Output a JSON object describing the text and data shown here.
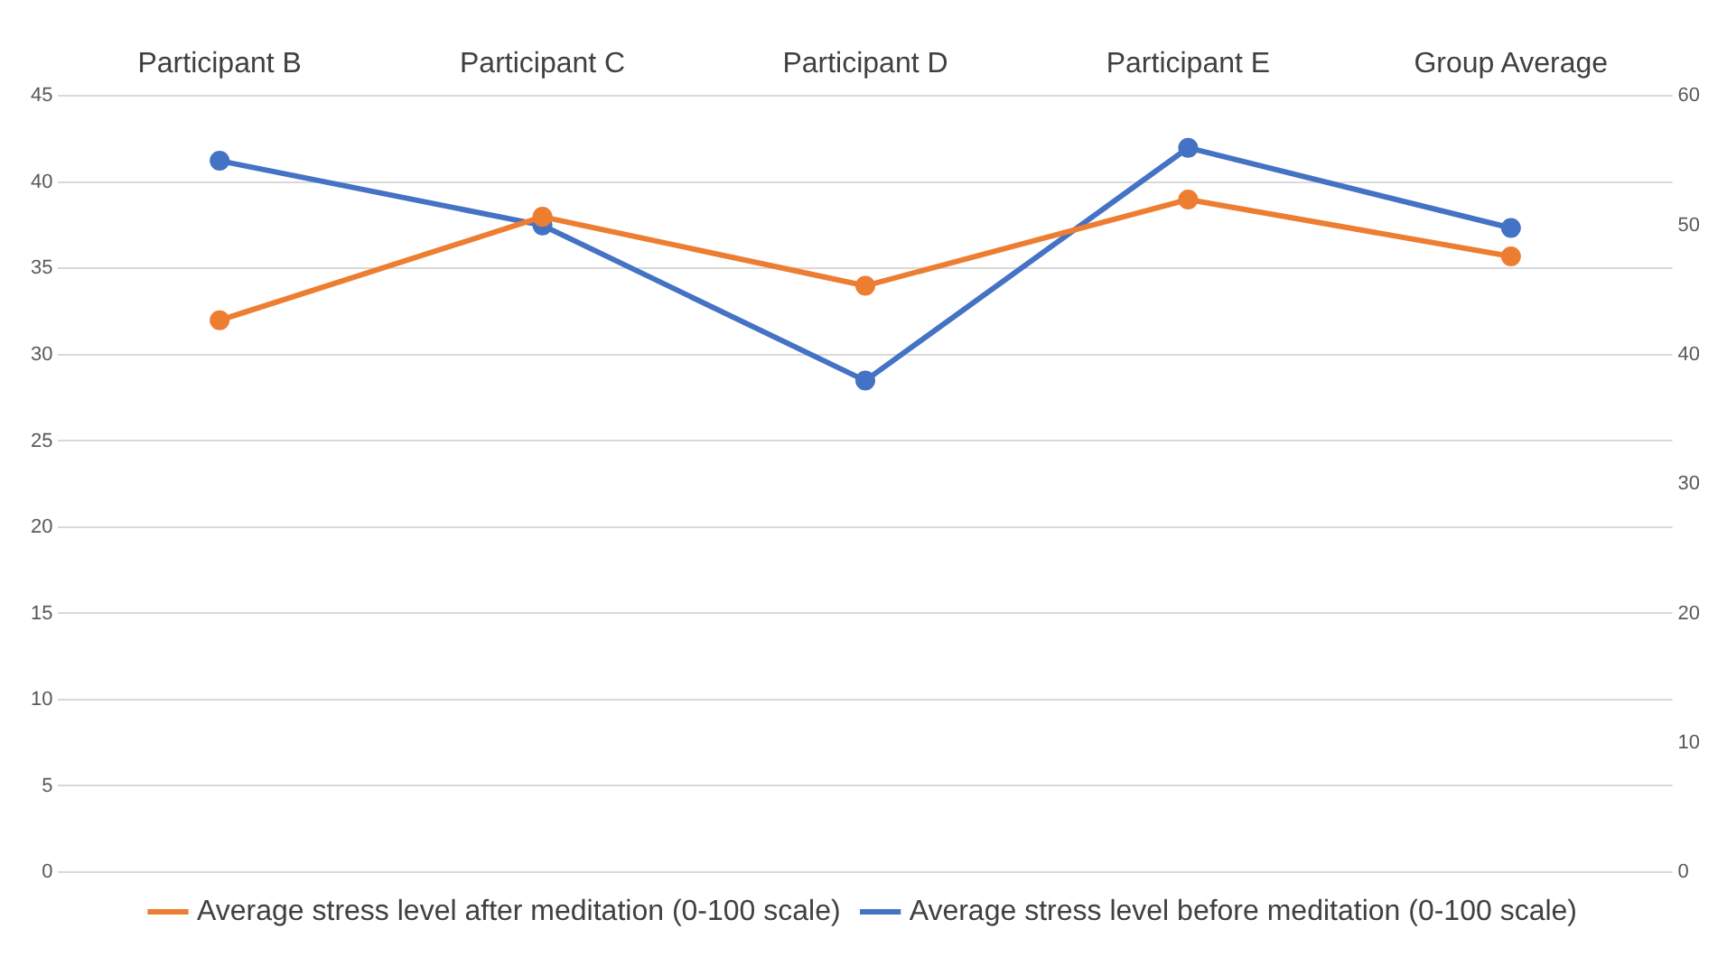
{
  "chart_data": {
    "type": "line",
    "categories": [
      "Participant B",
      "Participant C",
      "Participant D",
      "Participant E",
      "Group Average"
    ],
    "series": [
      {
        "name": "Average stress level after meditation (0-100 scale)",
        "color": "#ed7d31",
        "values": [
          32,
          38,
          34,
          39,
          35.7
        ]
      },
      {
        "name": "Average stress level before meditation (0-100 scale)",
        "color": "#4472c4",
        "values": [
          55,
          50,
          38,
          56,
          49.8
        ],
        "axis": "y2"
      }
    ],
    "ylim": [
      0,
      45
    ],
    "yticks": [
      0,
      5,
      10,
      15,
      20,
      25,
      30,
      35,
      40,
      45
    ],
    "y2lim": [
      0,
      60
    ],
    "y2ticks": [
      0,
      10,
      20,
      30,
      40,
      50,
      60
    ],
    "grid": "y",
    "legend": "bottom",
    "marker": "circle",
    "line_style": "solid"
  }
}
